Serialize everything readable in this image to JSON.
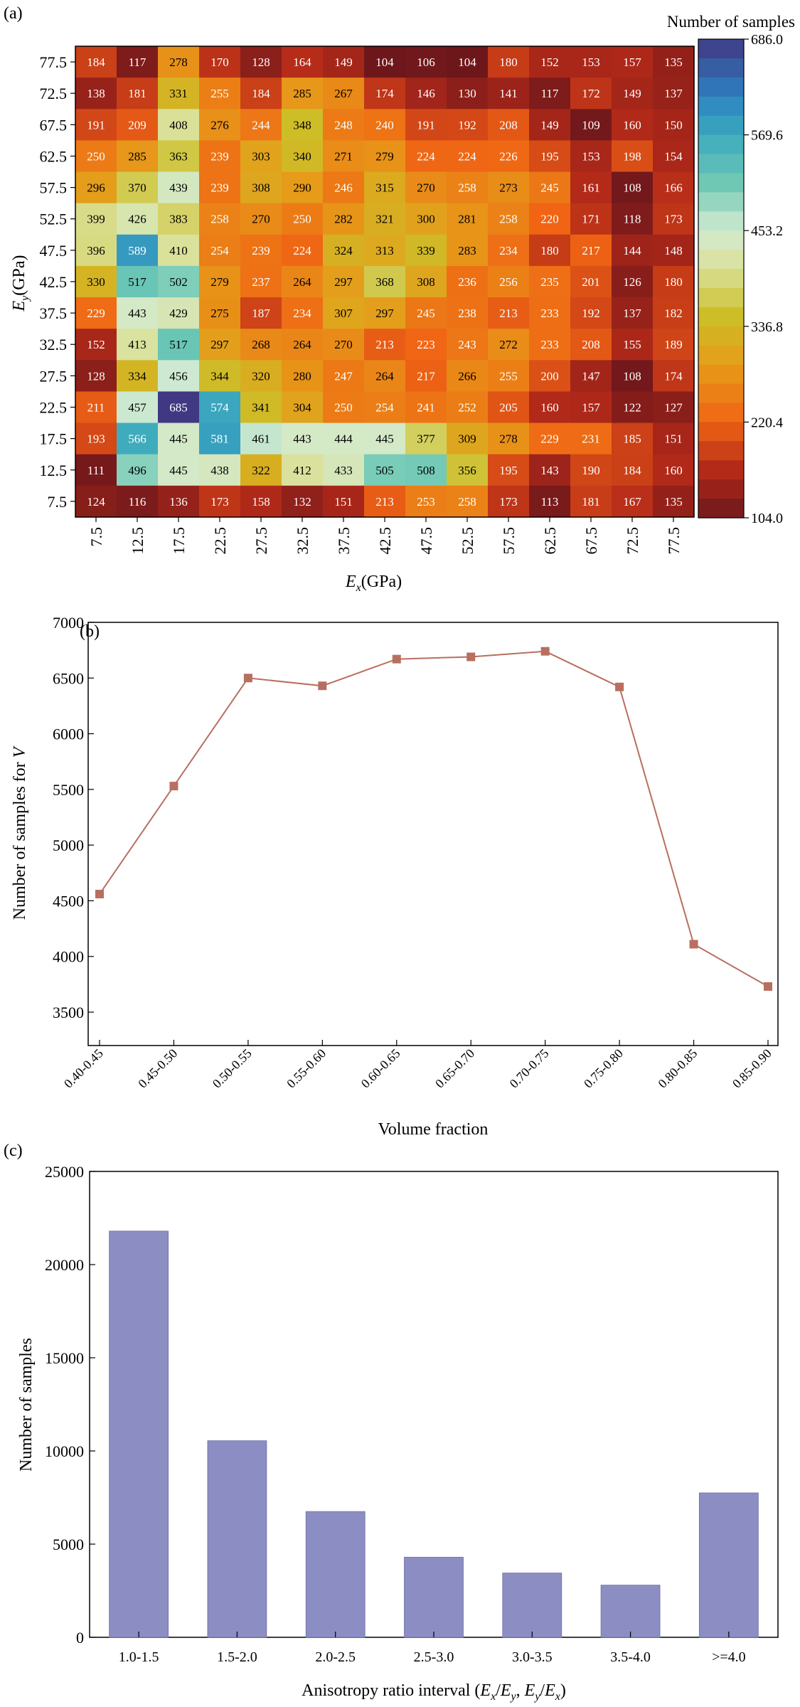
{
  "chart_data": [
    {
      "panel_label": "(a)",
      "type": "heatmap",
      "xlabel_main": "E",
      "xlabel_sub": "x",
      "xlabel_unit": "(GPa)",
      "ylabel_main": "E",
      "ylabel_sub": "y",
      "ylabel_unit": "(GPa)",
      "x_categories": [
        "7.5",
        "12.5",
        "17.5",
        "22.5",
        "27.5",
        "32.5",
        "37.5",
        "42.5",
        "47.5",
        "52.5",
        "57.5",
        "62.5",
        "67.5",
        "72.5",
        "77.5"
      ],
      "y_categories": [
        "77.5",
        "72.5",
        "67.5",
        "62.5",
        "57.5",
        "52.5",
        "47.5",
        "42.5",
        "37.5",
        "32.5",
        "27.5",
        "22.5",
        "17.5",
        "12.5",
        "7.5"
      ],
      "values": [
        [
          184,
          117,
          278,
          170,
          128,
          164,
          149,
          104,
          106,
          104,
          180,
          152,
          153,
          157,
          135
        ],
        [
          138,
          181,
          331,
          255,
          184,
          285,
          267,
          174,
          146,
          130,
          141,
          117,
          172,
          149,
          137
        ],
        [
          191,
          209,
          408,
          276,
          244,
          348,
          248,
          240,
          191,
          192,
          208,
          149,
          109,
          160,
          150
        ],
        [
          250,
          285,
          363,
          239,
          303,
          340,
          271,
          279,
          224,
          224,
          226,
          195,
          153,
          198,
          154
        ],
        [
          296,
          370,
          439,
          239,
          308,
          290,
          246,
          315,
          270,
          258,
          273,
          245,
          161,
          108,
          166
        ],
        [
          399,
          426,
          383,
          258,
          270,
          250,
          282,
          321,
          300,
          281,
          258,
          220,
          171,
          118,
          173
        ],
        [
          396,
          589,
          410,
          254,
          239,
          224,
          324,
          313,
          339,
          283,
          234,
          180,
          217,
          144,
          148
        ],
        [
          330,
          517,
          502,
          279,
          237,
          264,
          297,
          368,
          308,
          236,
          256,
          235,
          201,
          126,
          180
        ],
        [
          229,
          443,
          429,
          275,
          187,
          234,
          307,
          297,
          245,
          238,
          213,
          233,
          192,
          137,
          182
        ],
        [
          152,
          413,
          517,
          297,
          268,
          264,
          270,
          213,
          223,
          243,
          272,
          233,
          208,
          155,
          189
        ],
        [
          128,
          334,
          456,
          344,
          320,
          280,
          247,
          264,
          217,
          266,
          255,
          200,
          147,
          108,
          174
        ],
        [
          211,
          457,
          685,
          574,
          341,
          304,
          250,
          254,
          241,
          252,
          205,
          160,
          157,
          122,
          127
        ],
        [
          193,
          566,
          445,
          581,
          461,
          443,
          444,
          445,
          377,
          309,
          278,
          229,
          231,
          185,
          151
        ],
        [
          111,
          496,
          445,
          438,
          322,
          412,
          433,
          505,
          508,
          356,
          195,
          143,
          190,
          184,
          160
        ],
        [
          124,
          116,
          136,
          173,
          158,
          132,
          151,
          213,
          253,
          258,
          173,
          113,
          181,
          167,
          135
        ]
      ],
      "colorbar_title": "Number of samples",
      "colorbar_ticks": [
        "686.0",
        "569.6",
        "453.2",
        "336.8",
        "220.4",
        "104.0"
      ],
      "colorbar_range": [
        104.0,
        686.0
      ]
    },
    {
      "panel_label": "(b)",
      "type": "line",
      "categories": [
        "0.40-0.45",
        "0.45-0.50",
        "0.50-0.55",
        "0.55-0.60",
        "0.60-0.65",
        "0.65-0.70",
        "0.70-0.75",
        "0.75-0.80",
        "0.80-0.85",
        "0.85-0.90"
      ],
      "values": [
        4560,
        5530,
        6500,
        6430,
        6670,
        6690,
        6740,
        6420,
        4110,
        3730
      ],
      "xlabel": "Volume fraction",
      "ylabel": "Number of samples for",
      "ylabel_italic": "V",
      "ylim": [
        3200,
        7000
      ],
      "yticks": [
        3500,
        4000,
        4500,
        5000,
        5500,
        6000,
        6500,
        7000
      ],
      "line_color": "#b86f5f",
      "marker_color": "#b86f5f"
    },
    {
      "panel_label": "(c)",
      "type": "bar",
      "categories": [
        "1.0-1.5",
        "1.5-2.0",
        "2.0-2.5",
        "2.5-3.0",
        "3.0-3.5",
        "3.5-4.0",
        ">=4.0"
      ],
      "values": [
        21800,
        10550,
        6750,
        4300,
        3450,
        2800,
        7750
      ],
      "xlabel_prefix": "Anisotropy ratio interval (",
      "xlabel_suffix": ")",
      "xlabel_ex": "E",
      "xlabel_x": "x",
      "xlabel_ey": "E",
      "xlabel_y": "y",
      "ylabel": "Number of samples",
      "ylim": [
        0,
        25000
      ],
      "yticks": [
        0,
        5000,
        10000,
        15000,
        20000,
        25000
      ],
      "bar_color": "#8b8dc3"
    }
  ]
}
